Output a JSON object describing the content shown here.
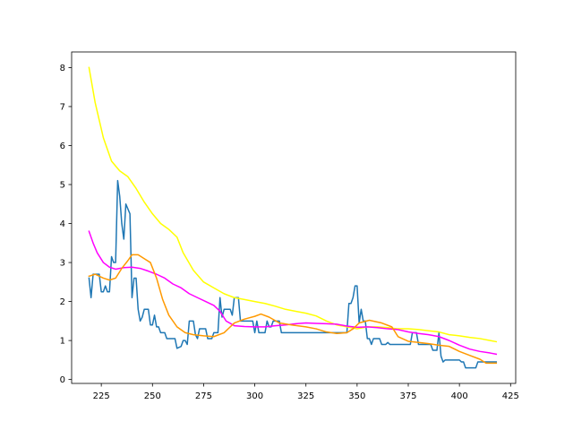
{
  "chart_data": {
    "type": "line",
    "title": "",
    "xlabel": "",
    "ylabel": "",
    "xlim": [
      210.5,
      427.5
    ],
    "ylim": [
      -0.1,
      8.4
    ],
    "xticks": [
      225,
      250,
      275,
      300,
      325,
      350,
      375,
      400,
      425
    ],
    "yticks": [
      0,
      1,
      2,
      3,
      4,
      5,
      6,
      7,
      8
    ],
    "grid": false,
    "legend": "none",
    "series": [
      {
        "color": "#1f77b4",
        "points": [
          [
            219,
            2.6
          ],
          [
            220,
            2.1
          ],
          [
            221,
            2.7
          ],
          [
            224,
            2.7
          ],
          [
            225,
            2.25
          ],
          [
            226,
            2.25
          ],
          [
            227,
            2.4
          ],
          [
            228,
            2.25
          ],
          [
            229,
            2.25
          ],
          [
            230,
            3.15
          ],
          [
            231,
            3.0
          ],
          [
            232,
            3.0
          ],
          [
            233,
            5.1
          ],
          [
            234,
            4.7
          ],
          [
            235,
            4.0
          ],
          [
            236,
            3.6
          ],
          [
            237,
            4.5
          ],
          [
            239,
            4.25
          ],
          [
            240,
            2.1
          ],
          [
            241,
            2.6
          ],
          [
            242,
            2.6
          ],
          [
            243,
            1.8
          ],
          [
            244,
            1.5
          ],
          [
            245,
            1.6
          ],
          [
            246,
            1.8
          ],
          [
            248,
            1.8
          ],
          [
            249,
            1.4
          ],
          [
            250,
            1.4
          ],
          [
            251,
            1.65
          ],
          [
            252,
            1.35
          ],
          [
            253,
            1.35
          ],
          [
            254,
            1.2
          ],
          [
            256,
            1.2
          ],
          [
            257,
            1.05
          ],
          [
            261,
            1.05
          ],
          [
            262,
            0.8
          ],
          [
            264,
            0.85
          ],
          [
            265,
            1.0
          ],
          [
            266,
            1.0
          ],
          [
            267,
            0.9
          ],
          [
            268,
            1.5
          ],
          [
            270,
            1.5
          ],
          [
            271,
            1.15
          ],
          [
            272,
            1.05
          ],
          [
            273,
            1.3
          ],
          [
            276,
            1.3
          ],
          [
            277,
            1.05
          ],
          [
            279,
            1.05
          ],
          [
            280,
            1.2
          ],
          [
            282,
            1.2
          ],
          [
            283,
            2.1
          ],
          [
            284,
            1.6
          ],
          [
            285,
            1.8
          ],
          [
            288,
            1.8
          ],
          [
            289,
            1.65
          ],
          [
            290,
            2.1
          ],
          [
            292,
            2.1
          ],
          [
            293,
            1.5
          ],
          [
            299,
            1.5
          ],
          [
            300,
            1.2
          ],
          [
            301,
            1.5
          ],
          [
            302,
            1.2
          ],
          [
            305,
            1.2
          ],
          [
            306,
            1.5
          ],
          [
            307,
            1.35
          ],
          [
            308,
            1.35
          ],
          [
            309,
            1.5
          ],
          [
            312,
            1.5
          ],
          [
            313,
            1.2
          ],
          [
            345,
            1.2
          ],
          [
            346,
            1.95
          ],
          [
            347,
            1.95
          ],
          [
            348,
            2.1
          ],
          [
            349,
            2.4
          ],
          [
            350,
            2.4
          ],
          [
            351,
            1.45
          ],
          [
            352,
            1.8
          ],
          [
            353,
            1.5
          ],
          [
            354,
            1.5
          ],
          [
            355,
            1.05
          ],
          [
            356,
            1.05
          ],
          [
            357,
            0.9
          ],
          [
            358,
            1.05
          ],
          [
            361,
            1.05
          ],
          [
            362,
            0.9
          ],
          [
            364,
            0.9
          ],
          [
            365,
            0.95
          ],
          [
            366,
            0.9
          ],
          [
            376,
            0.9
          ],
          [
            377,
            1.2
          ],
          [
            379,
            1.2
          ],
          [
            380,
            0.9
          ],
          [
            386,
            0.9
          ],
          [
            387,
            0.75
          ],
          [
            389,
            0.75
          ],
          [
            390,
            1.2
          ],
          [
            391,
            0.6
          ],
          [
            392,
            0.45
          ],
          [
            393,
            0.5
          ],
          [
            400,
            0.5
          ],
          [
            401,
            0.45
          ],
          [
            402,
            0.45
          ],
          [
            403,
            0.3
          ],
          [
            408,
            0.3
          ],
          [
            409,
            0.45
          ],
          [
            418,
            0.45
          ]
        ]
      },
      {
        "color": "#ffff00",
        "points": [
          [
            219,
            8.0
          ],
          [
            222,
            7.1
          ],
          [
            226,
            6.2
          ],
          [
            230,
            5.6
          ],
          [
            234,
            5.35
          ],
          [
            238,
            5.2
          ],
          [
            242,
            4.9
          ],
          [
            246,
            4.55
          ],
          [
            250,
            4.25
          ],
          [
            254,
            4.0
          ],
          [
            258,
            3.85
          ],
          [
            262,
            3.65
          ],
          [
            265,
            3.25
          ],
          [
            270,
            2.8
          ],
          [
            275,
            2.5
          ],
          [
            280,
            2.35
          ],
          [
            285,
            2.2
          ],
          [
            290,
            2.1
          ],
          [
            295,
            2.05
          ],
          [
            300,
            2.0
          ],
          [
            305,
            1.95
          ],
          [
            310,
            1.88
          ],
          [
            315,
            1.8
          ],
          [
            320,
            1.75
          ],
          [
            325,
            1.7
          ],
          [
            330,
            1.63
          ],
          [
            335,
            1.5
          ],
          [
            340,
            1.4
          ],
          [
            345,
            1.35
          ],
          [
            350,
            1.3
          ],
          [
            355,
            1.35
          ],
          [
            360,
            1.35
          ],
          [
            365,
            1.33
          ],
          [
            370,
            1.3
          ],
          [
            375,
            1.3
          ],
          [
            380,
            1.28
          ],
          [
            385,
            1.25
          ],
          [
            390,
            1.22
          ],
          [
            395,
            1.15
          ],
          [
            400,
            1.12
          ],
          [
            405,
            1.08
          ],
          [
            410,
            1.05
          ],
          [
            415,
            1.0
          ],
          [
            418,
            0.97
          ]
        ]
      },
      {
        "color": "#ff00ff",
        "points": [
          [
            219,
            3.8
          ],
          [
            221,
            3.5
          ],
          [
            223,
            3.25
          ],
          [
            226,
            3.0
          ],
          [
            229,
            2.88
          ],
          [
            232,
            2.83
          ],
          [
            236,
            2.87
          ],
          [
            240,
            2.88
          ],
          [
            244,
            2.85
          ],
          [
            248,
            2.78
          ],
          [
            252,
            2.7
          ],
          [
            256,
            2.6
          ],
          [
            260,
            2.45
          ],
          [
            264,
            2.35
          ],
          [
            268,
            2.2
          ],
          [
            272,
            2.1
          ],
          [
            276,
            2.0
          ],
          [
            280,
            1.9
          ],
          [
            283,
            1.75
          ],
          [
            286,
            1.5
          ],
          [
            290,
            1.38
          ],
          [
            295,
            1.36
          ],
          [
            300,
            1.35
          ],
          [
            305,
            1.35
          ],
          [
            310,
            1.38
          ],
          [
            315,
            1.4
          ],
          [
            320,
            1.43
          ],
          [
            325,
            1.45
          ],
          [
            330,
            1.44
          ],
          [
            335,
            1.43
          ],
          [
            340,
            1.42
          ],
          [
            345,
            1.37
          ],
          [
            350,
            1.34
          ],
          [
            355,
            1.35
          ],
          [
            360,
            1.33
          ],
          [
            365,
            1.3
          ],
          [
            370,
            1.28
          ],
          [
            375,
            1.22
          ],
          [
            380,
            1.18
          ],
          [
            385,
            1.15
          ],
          [
            390,
            1.1
          ],
          [
            395,
            1.0
          ],
          [
            400,
            0.88
          ],
          [
            405,
            0.78
          ],
          [
            410,
            0.72
          ],
          [
            415,
            0.68
          ],
          [
            418,
            0.65
          ]
        ]
      },
      {
        "color": "#ff9900",
        "points": [
          [
            219,
            2.65
          ],
          [
            222,
            2.7
          ],
          [
            226,
            2.6
          ],
          [
            229,
            2.55
          ],
          [
            232,
            2.6
          ],
          [
            235,
            2.85
          ],
          [
            238,
            3.05
          ],
          [
            240,
            3.2
          ],
          [
            243,
            3.2
          ],
          [
            246,
            3.1
          ],
          [
            249,
            3.0
          ],
          [
            252,
            2.6
          ],
          [
            255,
            2.05
          ],
          [
            258,
            1.65
          ],
          [
            262,
            1.35
          ],
          [
            266,
            1.2
          ],
          [
            270,
            1.15
          ],
          [
            275,
            1.12
          ],
          [
            280,
            1.1
          ],
          [
            285,
            1.2
          ],
          [
            290,
            1.45
          ],
          [
            295,
            1.55
          ],
          [
            300,
            1.62
          ],
          [
            303,
            1.68
          ],
          [
            307,
            1.6
          ],
          [
            312,
            1.45
          ],
          [
            318,
            1.4
          ],
          [
            325,
            1.35
          ],
          [
            330,
            1.3
          ],
          [
            335,
            1.22
          ],
          [
            340,
            1.18
          ],
          [
            345,
            1.2
          ],
          [
            348,
            1.3
          ],
          [
            351,
            1.45
          ],
          [
            356,
            1.52
          ],
          [
            362,
            1.45
          ],
          [
            367,
            1.35
          ],
          [
            370,
            1.1
          ],
          [
            375,
            0.98
          ],
          [
            380,
            0.95
          ],
          [
            385,
            0.92
          ],
          [
            390,
            0.88
          ],
          [
            395,
            0.85
          ],
          [
            400,
            0.72
          ],
          [
            405,
            0.62
          ],
          [
            410,
            0.52
          ],
          [
            413,
            0.42
          ],
          [
            418,
            0.42
          ]
        ]
      }
    ]
  }
}
